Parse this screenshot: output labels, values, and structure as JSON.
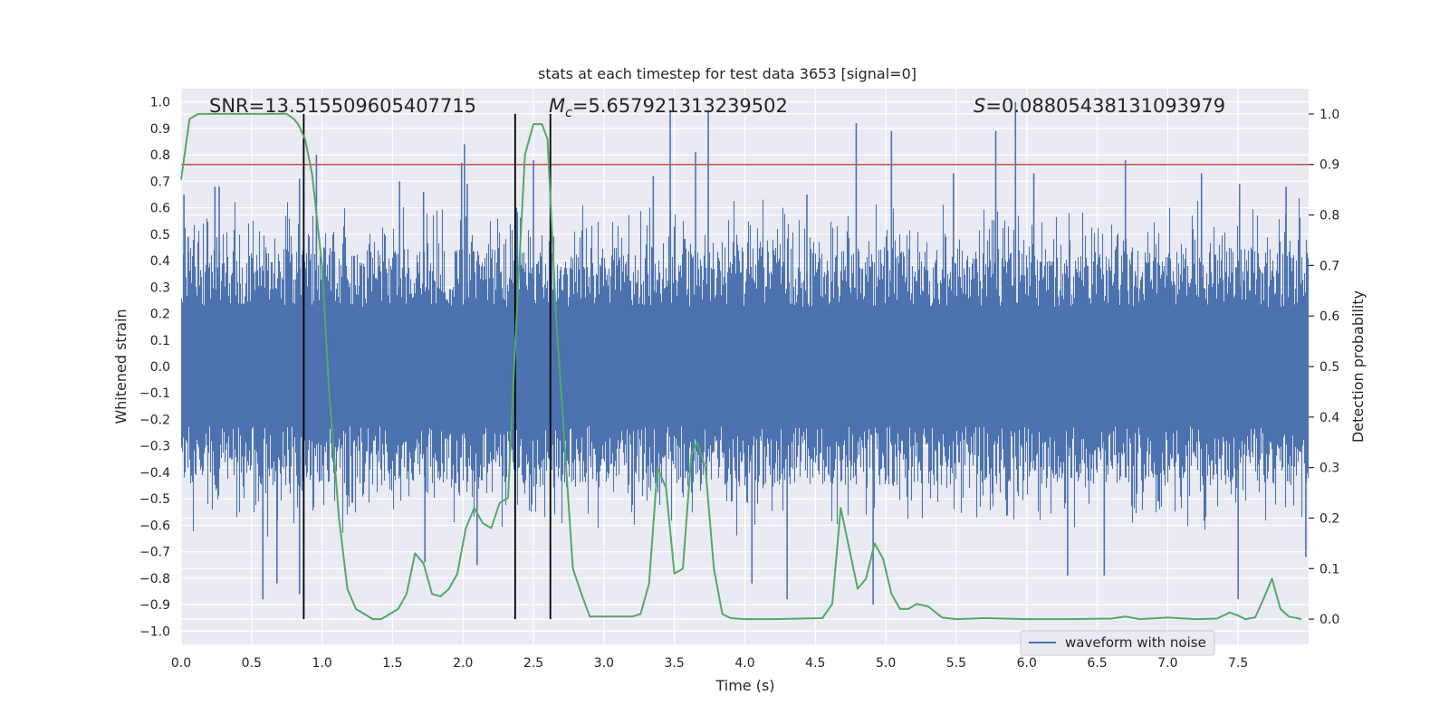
{
  "chart_data": {
    "type": "line",
    "title": "stats at each timestep for test data 3653 [signal=0]",
    "xlabel": "Time (s)",
    "ylabel": "Whitened strain",
    "ylabel_right": "Detection probability",
    "xlim": [
      0,
      8.0
    ],
    "ylim": [
      -1.05,
      1.05
    ],
    "ylim_right": [
      -0.05,
      1.05
    ],
    "x_ticks": [
      0.0,
      0.5,
      1.0,
      1.5,
      2.0,
      2.5,
      3.0,
      3.5,
      4.0,
      4.5,
      5.0,
      5.5,
      6.0,
      6.5,
      7.0,
      7.5
    ],
    "x_tick_labels": [
      "0.0",
      "0.5",
      "1.0",
      "1.5",
      "2.0",
      "2.5",
      "3.0",
      "3.5",
      "4.0",
      "4.5",
      "5.0",
      "5.5",
      "6.0",
      "6.5",
      "7.0",
      "7.5"
    ],
    "y_ticks": [
      1.0,
      0.9,
      0.8,
      0.7,
      0.6,
      0.5,
      0.4,
      0.3,
      0.2,
      0.1,
      0.0,
      -0.1,
      -0.2,
      -0.3,
      -0.4,
      -0.5,
      -0.6,
      -0.7,
      -0.8,
      -0.9,
      -1.0
    ],
    "y_tick_labels": [
      "1.0",
      "0.9",
      "0.8",
      "0.7",
      "0.6",
      "0.5",
      "0.4",
      "0.3",
      "0.2",
      "0.1",
      "0.0",
      "−0.1",
      "−0.2",
      "−0.3",
      "−0.4",
      "−0.5",
      "−0.6",
      "−0.7",
      "−0.8",
      "−0.9",
      "−1.0"
    ],
    "y2_ticks": [
      1.0,
      0.9,
      0.8,
      0.7,
      0.6,
      0.5,
      0.4,
      0.3,
      0.2,
      0.1,
      0.0
    ],
    "y2_tick_labels": [
      "1.0",
      "0.9",
      "0.8",
      "0.7",
      "0.6",
      "0.5",
      "0.4",
      "0.3",
      "0.2",
      "0.1",
      "0.0"
    ],
    "annotations": {
      "snr": "SNR=13.515509605407715",
      "mc_symbol": "M",
      "mc_sub": "c",
      "mc_value": "=5.657921313239502",
      "s_symbol": "S",
      "s_value": "=0.08805438131093979"
    },
    "threshold": {
      "value": 0.9,
      "axis": "right",
      "color": "#c44e52"
    },
    "vertical_lines": [
      0.87,
      2.37,
      2.62
    ],
    "legend": {
      "label": "waveform with noise",
      "location": "lower right"
    },
    "series": [
      {
        "name": "waveform with noise",
        "axis": "left",
        "color": "#4c72b0",
        "envelope": {
          "upper_typical": 0.45,
          "lower_typical": -0.45
        },
        "spikes": [
          [
            0.02,
            0.65
          ],
          [
            0.05,
            0.49
          ],
          [
            0.24,
            0.68
          ],
          [
            0.27,
            0.68
          ],
          [
            0.58,
            -0.88
          ],
          [
            0.68,
            -0.82
          ],
          [
            0.84,
            0.71
          ],
          [
            0.84,
            -0.86
          ],
          [
            0.96,
            0.8
          ],
          [
            1.55,
            0.7
          ],
          [
            1.72,
            0.66
          ],
          [
            1.73,
            -0.74
          ],
          [
            1.99,
            0.77
          ],
          [
            2.01,
            0.84
          ],
          [
            2.03,
            0.69
          ],
          [
            2.1,
            -0.75
          ],
          [
            2.38,
            0.6
          ],
          [
            2.5,
            0.78
          ],
          [
            3.35,
            0.72
          ],
          [
            3.47,
            0.97
          ],
          [
            3.65,
            0.81
          ],
          [
            3.74,
            0.97
          ],
          [
            4.05,
            -0.82
          ],
          [
            4.3,
            -0.88
          ],
          [
            4.44,
            0.65
          ],
          [
            4.79,
            0.92
          ],
          [
            4.91,
            -0.9
          ],
          [
            5.04,
            0.89
          ],
          [
            5.48,
            0.73
          ],
          [
            5.78,
            0.89
          ],
          [
            5.92,
            1.0
          ],
          [
            6.05,
            0.73
          ],
          [
            6.29,
            -0.79
          ],
          [
            6.55,
            -0.79
          ],
          [
            6.7,
            0.78
          ],
          [
            7.24,
            0.73
          ],
          [
            7.5,
            -0.88
          ],
          [
            7.51,
            0.69
          ],
          [
            7.84,
            0.68
          ],
          [
            7.98,
            -0.72
          ]
        ]
      },
      {
        "name": "detection probability",
        "axis": "right",
        "color": "#55a868",
        "x": [
          0.0,
          0.06,
          0.12,
          0.2,
          0.3,
          0.4,
          0.5,
          0.6,
          0.7,
          0.75,
          0.8,
          0.83,
          0.88,
          0.93,
          1.0,
          1.05,
          1.12,
          1.18,
          1.24,
          1.3,
          1.36,
          1.42,
          1.48,
          1.54,
          1.6,
          1.66,
          1.72,
          1.78,
          1.84,
          1.9,
          1.96,
          2.02,
          2.08,
          2.14,
          2.2,
          2.26,
          2.32,
          2.38,
          2.44,
          2.5,
          2.56,
          2.6,
          2.66,
          2.72,
          2.78,
          2.84,
          2.9,
          3.0,
          3.1,
          3.2,
          3.26,
          3.32,
          3.38,
          3.44,
          3.5,
          3.56,
          3.62,
          3.66,
          3.72,
          3.78,
          3.84,
          3.9,
          4.0,
          4.2,
          4.4,
          4.55,
          4.62,
          4.68,
          4.74,
          4.8,
          4.86,
          4.92,
          4.98,
          5.04,
          5.1,
          5.16,
          5.22,
          5.3,
          5.4,
          5.5,
          5.7,
          6.0,
          6.3,
          6.6,
          6.7,
          6.8,
          7.0,
          7.2,
          7.35,
          7.44,
          7.5,
          7.55,
          7.62,
          7.68,
          7.74,
          7.8,
          7.86,
          7.95
        ],
        "y": [
          0.87,
          0.99,
          1.0,
          1.0,
          1.0,
          1.0,
          1.0,
          1.0,
          1.0,
          1.0,
          0.99,
          0.98,
          0.95,
          0.88,
          0.7,
          0.45,
          0.2,
          0.06,
          0.02,
          0.01,
          0.0,
          0.0,
          0.01,
          0.02,
          0.05,
          0.13,
          0.11,
          0.05,
          0.045,
          0.06,
          0.09,
          0.18,
          0.22,
          0.19,
          0.18,
          0.23,
          0.24,
          0.6,
          0.92,
          0.98,
          0.98,
          0.95,
          0.6,
          0.35,
          0.1,
          0.05,
          0.005,
          0.005,
          0.005,
          0.005,
          0.01,
          0.07,
          0.3,
          0.26,
          0.09,
          0.1,
          0.325,
          0.35,
          0.3,
          0.1,
          0.01,
          0.002,
          0.0,
          0.0,
          0.001,
          0.002,
          0.03,
          0.22,
          0.14,
          0.06,
          0.08,
          0.15,
          0.12,
          0.05,
          0.02,
          0.02,
          0.03,
          0.025,
          0.003,
          0.0,
          0.002,
          0.0,
          0.0,
          0.001,
          0.005,
          0.0,
          0.003,
          0.0,
          0.001,
          0.013,
          0.007,
          0.0,
          0.003,
          0.04,
          0.08,
          0.02,
          0.005,
          0.0
        ]
      }
    ]
  }
}
